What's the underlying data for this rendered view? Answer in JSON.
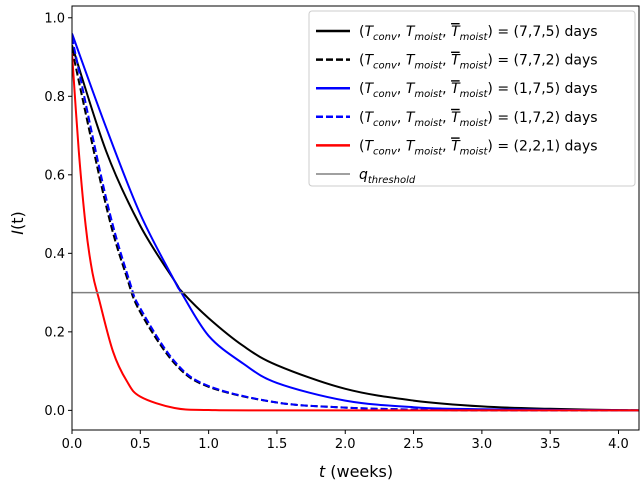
{
  "chart_data": {
    "type": "line",
    "xlabel": "t (weeks)",
    "ylabel": "I(t)",
    "xlim": [
      0.0,
      4.15
    ],
    "ylim": [
      -0.05,
      1.03
    ],
    "xticks": [
      "0.0",
      "0.5",
      "1.0",
      "1.5",
      "2.0",
      "2.5",
      "3.0",
      "3.5",
      "4.0"
    ],
    "yticks": [
      "0.0",
      "0.2",
      "0.4",
      "0.6",
      "0.8",
      "1.0"
    ],
    "grid": false,
    "legend_position": "top-right",
    "hline": {
      "name": "q_threshold",
      "y": 0.3,
      "color": "#808080"
    },
    "series": [
      {
        "name": "(T_conv, T_moist, T̃_moist) = (7,7,5) days",
        "color": "#000000",
        "dash": "solid",
        "x": [
          0,
          0.25,
          0.5,
          0.75,
          0.81,
          1.0,
          1.25,
          1.5,
          2.0,
          2.5,
          3.0,
          3.5,
          4.15
        ],
        "y": [
          0.93,
          0.66,
          0.47,
          0.33,
          0.3,
          0.235,
          0.165,
          0.115,
          0.055,
          0.025,
          0.01,
          0.004,
          0.0
        ]
      },
      {
        "name": "(T_conv, T_moist, T̃_moist) = (7,7,2) days",
        "color": "#000000",
        "dash": "dashed",
        "x": [
          0,
          0.25,
          0.4,
          0.5,
          0.75,
          1.0,
          1.5,
          2.0,
          2.5,
          3.0,
          4.15
        ],
        "y": [
          0.92,
          0.52,
          0.34,
          0.25,
          0.12,
          0.06,
          0.02,
          0.007,
          0.002,
          0.0,
          0.0
        ]
      },
      {
        "name": "(T_conv, T_moist, T̃_moist) = (1,7,5) days",
        "color": "#0000ff",
        "dash": "solid",
        "x": [
          0,
          0.25,
          0.5,
          0.75,
          0.8,
          1.0,
          1.25,
          1.5,
          2.0,
          2.5,
          3.0,
          4.15
        ],
        "y": [
          0.96,
          0.72,
          0.5,
          0.33,
          0.3,
          0.19,
          0.12,
          0.07,
          0.025,
          0.008,
          0.003,
          0.0
        ]
      },
      {
        "name": "(T_conv, T_moist, T̃_moist) = (1,7,2) days",
        "color": "#0000ff",
        "dash": "dashed",
        "x": [
          0,
          0.25,
          0.42,
          0.5,
          0.75,
          1.0,
          1.5,
          2.0,
          2.5,
          3.0,
          4.15
        ],
        "y": [
          0.95,
          0.54,
          0.33,
          0.26,
          0.125,
          0.062,
          0.02,
          0.007,
          0.002,
          0.0,
          0.0
        ]
      },
      {
        "name": "(T_conv, T_moist, T̃_moist) = (2,2,1) days",
        "color": "#ff0000",
        "dash": "solid",
        "x": [
          0,
          0.05,
          0.1,
          0.15,
          0.2,
          0.3,
          0.4,
          0.5,
          0.75,
          1.0,
          1.5,
          4.15
        ],
        "y": [
          0.91,
          0.66,
          0.47,
          0.35,
          0.28,
          0.15,
          0.075,
          0.035,
          0.006,
          0.001,
          0.0,
          0.0
        ]
      }
    ],
    "legend": [
      {
        "prefix": "(",
        "v1": "T",
        "s1": "conv",
        "v2": "T",
        "s2": "moist",
        "v3": "T",
        "s3": "moist",
        "suffix": ") = (7,7,5) days"
      },
      {
        "prefix": "(",
        "v1": "T",
        "s1": "conv",
        "v2": "T",
        "s2": "moist",
        "v3": "T",
        "s3": "moist",
        "suffix": ") = (7,7,2) days"
      },
      {
        "prefix": "(",
        "v1": "T",
        "s1": "conv",
        "v2": "T",
        "s2": "moist",
        "v3": "T",
        "s3": "moist",
        "suffix": ") = (1,7,5) days"
      },
      {
        "prefix": "(",
        "v1": "T",
        "s1": "conv",
        "v2": "T",
        "s2": "moist",
        "v3": "T",
        "s3": "moist",
        "suffix": ") = (1,7,2) days"
      },
      {
        "prefix": "(",
        "v1": "T",
        "s1": "conv",
        "v2": "T",
        "s2": "moist",
        "v3": "T",
        "s3": "moist",
        "suffix": ") = (2,2,1) days"
      },
      {
        "q": "q",
        "qsub": "threshold"
      }
    ]
  }
}
